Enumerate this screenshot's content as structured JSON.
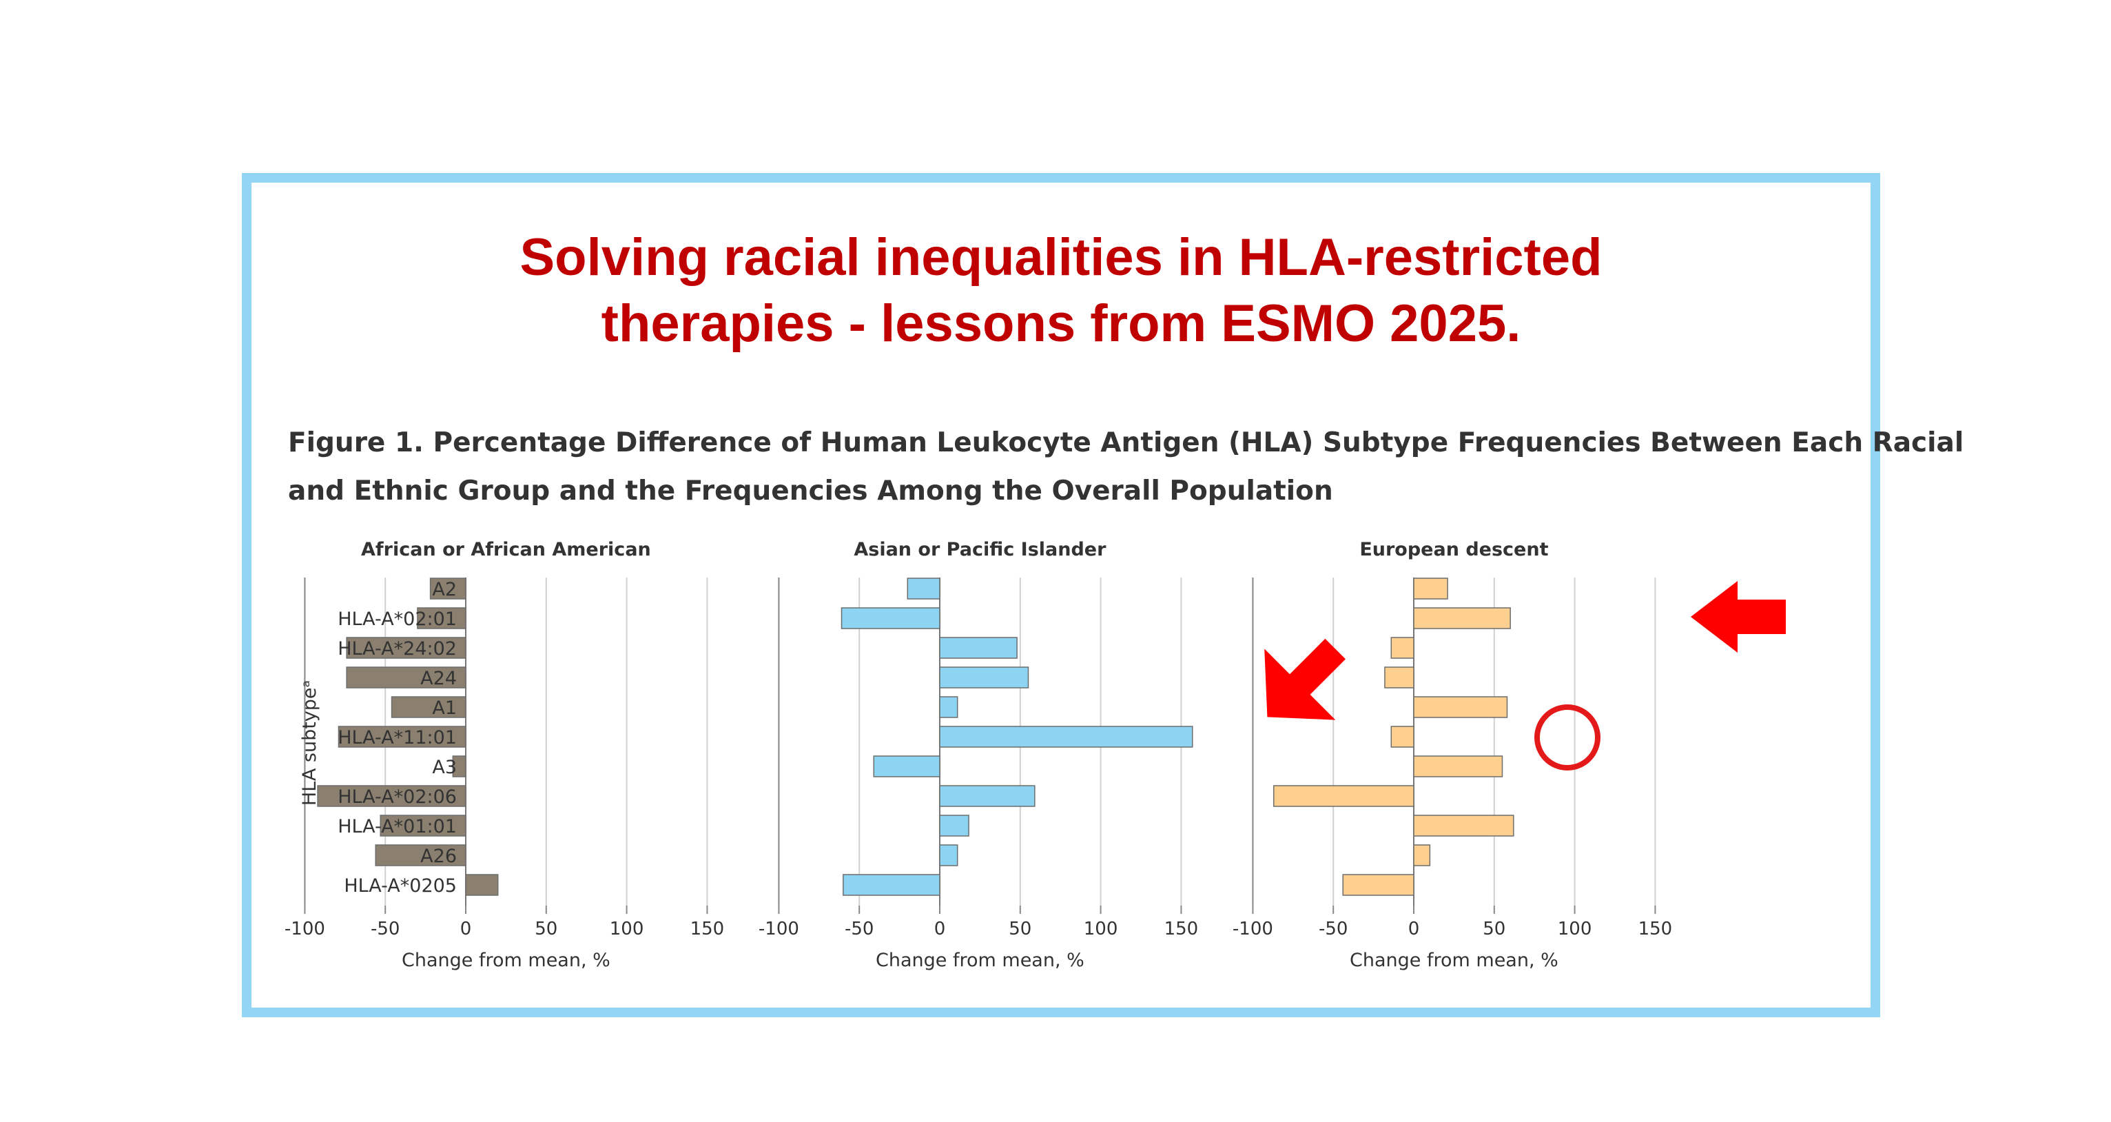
{
  "headline": {
    "line1": "Solving racial inequalities in HLA-restricted",
    "line2": "therapies - lessons from ESMO 2025."
  },
  "figure": {
    "caption_line1": "Figure 1.  Percentage Difference of Human Leukocyte Antigen (HLA) Subtype Frequencies Between Each Racial",
    "caption_line2": "and Ethnic Group and the Frequencies Among the Overall Population"
  },
  "colors": {
    "frame": "#92d5f4",
    "headline": "#c00000",
    "annotation": "#ff0000"
  },
  "chart_data": [
    {
      "type": "bar",
      "orientation": "horizontal",
      "title": "African or African American",
      "xlabel": "Change from mean, %",
      "ylabel": "HLA subtypeᵃ",
      "categories": [
        "A2",
        "HLA-A*02:01",
        "HLA-A*24:02",
        "A24",
        "A1",
        "HLA-A*11:01",
        "A3",
        "HLA-A*02:06",
        "HLA-A*01:01",
        "A26",
        "HLA-A*0205"
      ],
      "values": [
        -22,
        -30,
        -74,
        -74,
        -46,
        -79,
        -8,
        -92,
        -53,
        -56,
        20
      ],
      "xlim": [
        -100,
        150
      ],
      "xticks": [
        -100,
        -50,
        0,
        50,
        100,
        150
      ],
      "grid": true,
      "color": "#8b8070"
    },
    {
      "type": "bar",
      "orientation": "horizontal",
      "title": "Asian or Pacific Islander",
      "xlabel": "Change from mean, %",
      "categories": [
        "A2",
        "HLA-A*02:01",
        "HLA-A*24:02",
        "A24",
        "A1",
        "HLA-A*11:01",
        "A3",
        "HLA-A*02:06",
        "HLA-A*01:01",
        "A26",
        "HLA-A*0205"
      ],
      "values": [
        -20,
        -61,
        48,
        55,
        11,
        157,
        -41,
        59,
        18,
        11,
        -60
      ],
      "xlim": [
        -100,
        150
      ],
      "xticks": [
        -100,
        -50,
        0,
        50,
        100,
        150
      ],
      "grid": true,
      "color": "#8dd3f2",
      "annotations": [
        {
          "shape": "arrow",
          "points_to": "HLA-A*11:01"
        }
      ]
    },
    {
      "type": "bar",
      "orientation": "horizontal",
      "title": "European descent",
      "xlabel": "Change from mean, %",
      "categories": [
        "A2",
        "HLA-A*02:01",
        "HLA-A*24:02",
        "A24",
        "A1",
        "HLA-A*11:01",
        "A3",
        "HLA-A*02:06",
        "HLA-A*01:01",
        "A26",
        "HLA-A*0205"
      ],
      "values": [
        21,
        60,
        -14,
        -18,
        58,
        -14,
        55,
        -87,
        62,
        10,
        -44
      ],
      "xlim": [
        -100,
        150
      ],
      "xticks": [
        -100,
        -50,
        0,
        50,
        100,
        150
      ],
      "grid": true,
      "color": "#fdd08f",
      "annotations": [
        {
          "shape": "arrow",
          "points_to": "HLA-A*02:01"
        },
        {
          "shape": "circle",
          "highlights": "HLA-A*11:01"
        }
      ]
    }
  ]
}
